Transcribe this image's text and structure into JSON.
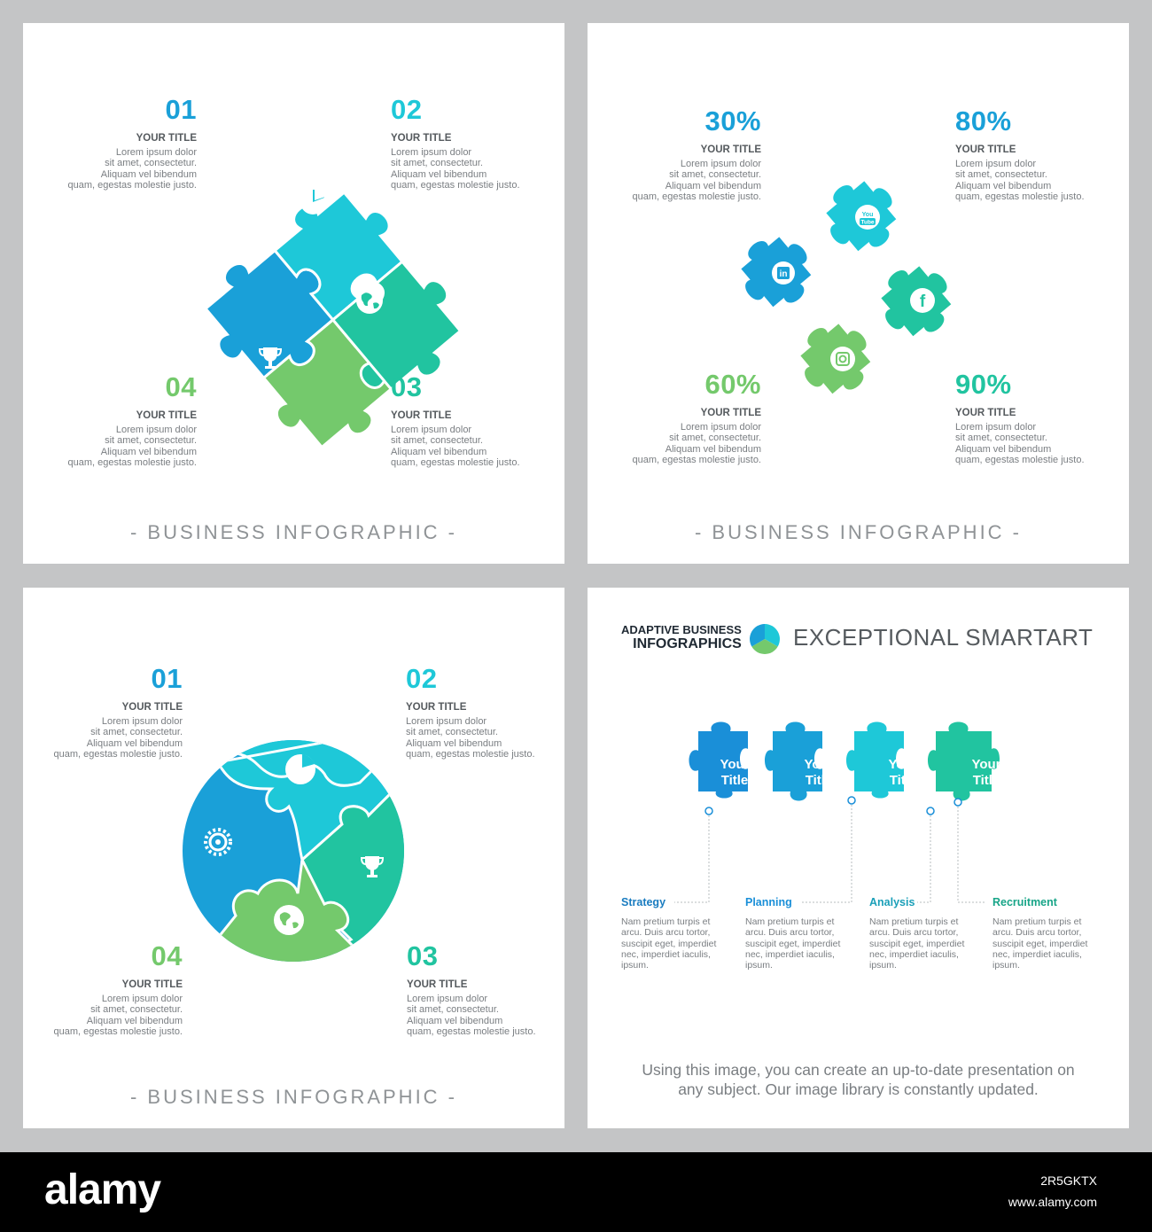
{
  "colors": {
    "blue": "#1aa0d8",
    "cyan": "#1ec8d8",
    "teal": "#21c4a0",
    "green": "#74c96c",
    "dark_text": "#555a5e",
    "light_text": "#7a7e82"
  },
  "panel1": {
    "blocks": [
      {
        "num": "01",
        "title": "YOUR TITLE",
        "lines": [
          "Lorem ipsum dolor",
          "sit amet, consectetur.",
          "Aliquam vel bibendum",
          "quam, egestas molestie justo."
        ]
      },
      {
        "num": "02",
        "title": "YOUR TITLE",
        "lines": [
          "Lorem ipsum dolor",
          "sit amet, consectetur.",
          "Aliquam vel bibendum",
          "quam, egestas molestie justo."
        ]
      },
      {
        "num": "04",
        "title": "YOUR TITLE",
        "lines": [
          "Lorem ipsum dolor",
          "sit amet, consectetur.",
          "Aliquam vel bibendum",
          "quam, egestas molestie justo."
        ]
      },
      {
        "num": "03",
        "title": "YOUR TITLE",
        "lines": [
          "Lorem ipsum dolor",
          "sit amet, consectetur.",
          "Aliquam vel bibendum",
          "quam, egestas molestie justo."
        ]
      }
    ],
    "icons": [
      "gear-icon",
      "pie-chart-icon",
      "globe-icon",
      "trophy-icon"
    ],
    "footer": "- BUSINESS INFOGRAPHIC -"
  },
  "panel2": {
    "blocks": [
      {
        "num": "30%",
        "title": "YOUR TITLE",
        "lines": [
          "Lorem ipsum dolor",
          "sit amet, consectetur.",
          "Aliquam vel bibendum",
          "quam, egestas molestie justo."
        ]
      },
      {
        "num": "80%",
        "title": "YOUR TITLE",
        "lines": [
          "Lorem ipsum dolor",
          "sit amet, consectetur.",
          "Aliquam vel bibendum",
          "quam, egestas molestie justo."
        ]
      },
      {
        "num": "60%",
        "title": "YOUR TITLE",
        "lines": [
          "Lorem ipsum dolor",
          "sit amet, consectetur.",
          "Aliquam vel bibendum",
          "quam, egestas molestie justo."
        ]
      },
      {
        "num": "90%",
        "title": "YOUR TITLE",
        "lines": [
          "Lorem ipsum dolor",
          "sit amet, consectetur.",
          "Aliquam vel bibendum",
          "quam, egestas molestie justo."
        ]
      }
    ],
    "icons": [
      "linkedin-icon",
      "youtube-icon",
      "facebook-icon",
      "instagram-icon"
    ],
    "icon_labels": {
      "youtube_top": "You",
      "youtube_bottom": "Tube",
      "linkedin": "in",
      "facebook": "f"
    },
    "footer": "- BUSINESS INFOGRAPHIC -"
  },
  "panel3": {
    "blocks": [
      {
        "num": "01",
        "title": "YOUR TITLE",
        "lines": [
          "Lorem ipsum dolor",
          "sit amet, consectetur.",
          "Aliquam vel bibendum",
          "quam, egestas molestie justo."
        ]
      },
      {
        "num": "02",
        "title": "YOUR TITLE",
        "lines": [
          "Lorem ipsum dolor",
          "sit amet, consectetur.",
          "Aliquam vel bibendum",
          "quam, egestas molestie justo."
        ]
      },
      {
        "num": "04",
        "title": "YOUR TITLE",
        "lines": [
          "Lorem ipsum dolor",
          "sit amet, consectetur.",
          "Aliquam vel bibendum",
          "quam, egestas molestie justo."
        ]
      },
      {
        "num": "03",
        "title": "YOUR TITLE",
        "lines": [
          "Lorem ipsum dolor",
          "sit amet, consectetur.",
          "Aliquam vel bibendum",
          "quam, egestas molestie justo."
        ]
      }
    ],
    "icons": [
      "gear-icon",
      "pie-chart-icon",
      "trophy-icon",
      "globe-icon"
    ],
    "footer": "- BUSINESS INFOGRAPHIC -"
  },
  "panel4": {
    "brand_line1": "ADAPTIVE BUSINESS",
    "brand_line2": "INFOGRAPHICS",
    "heading": "EXCEPTIONAL SMARTART",
    "pieces": [
      {
        "line1": "Your",
        "line2": "Title"
      },
      {
        "line1": "Your",
        "line2": "Title"
      },
      {
        "line1": "Your",
        "line2": "Title"
      },
      {
        "line1": "Your",
        "line2": "Title"
      }
    ],
    "steps": [
      {
        "title": "Strategy",
        "lines": [
          "Nam pretium turpis et",
          "arcu. Duis arcu tortor,",
          "suscipit eget, imperdiet",
          "nec, imperdiet iaculis,",
          "ipsum."
        ]
      },
      {
        "title": "Planning",
        "lines": [
          "Nam pretium turpis et",
          "arcu. Duis arcu tortor,",
          "suscipit eget, imperdiet",
          "nec, imperdiet iaculis,",
          "ipsum."
        ]
      },
      {
        "title": "Analysis",
        "lines": [
          "Nam pretium turpis et",
          "arcu. Duis arcu tortor,",
          "suscipit eget, imperdiet",
          "nec, imperdiet iaculis,",
          "ipsum."
        ]
      },
      {
        "title": "Recruitment",
        "lines": [
          "Nam pretium turpis et",
          "arcu. Duis arcu tortor,",
          "suscipit eget, imperdiet",
          "nec, imperdiet iaculis,",
          "ipsum."
        ]
      }
    ],
    "caption_lines": [
      "Using this image, you can create an up-to-date presentation on",
      "any subject. Our image library is constantly updated."
    ]
  },
  "watermark": {
    "logo": "alamy",
    "image_id": "2R5GKTX",
    "url": "www.alamy.com"
  }
}
